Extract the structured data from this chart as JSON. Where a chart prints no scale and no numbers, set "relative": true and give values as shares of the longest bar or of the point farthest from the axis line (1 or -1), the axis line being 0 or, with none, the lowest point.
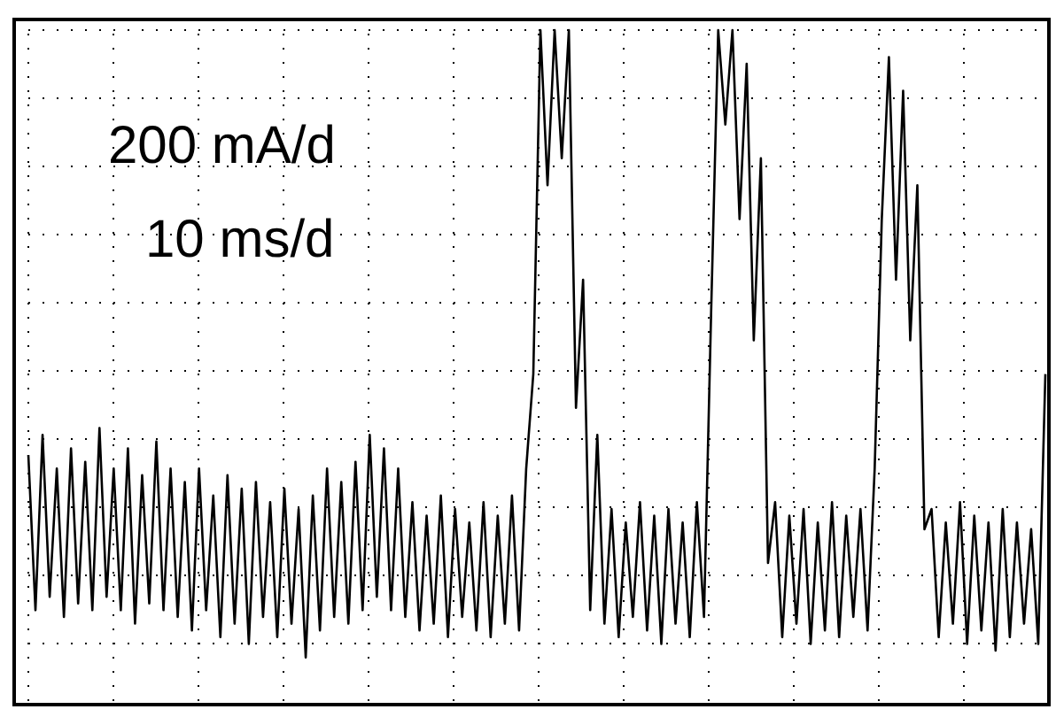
{
  "chart_data": {
    "type": "line",
    "relative": true,
    "grid": true,
    "annotations": [
      "200 mA/d",
      "10 ms/d"
    ],
    "categories": [
      null,
      null,
      null,
      null,
      null,
      null,
      null,
      null,
      null,
      null,
      null,
      null,
      null,
      null,
      null,
      null,
      null,
      null,
      null,
      null,
      null,
      null,
      null,
      null,
      null,
      null,
      null,
      null,
      null,
      null,
      null,
      null,
      null,
      null,
      null,
      null,
      null,
      null,
      null,
      null,
      null,
      null,
      null,
      null,
      null,
      null,
      null,
      null,
      null,
      null,
      null,
      null,
      null,
      null,
      null,
      null,
      null,
      null,
      null,
      null,
      null,
      null,
      null,
      null,
      null,
      null,
      null,
      null,
      null,
      null,
      null,
      null,
      null,
      null,
      null,
      null,
      null,
      null,
      null,
      null,
      null,
      null,
      null,
      null,
      null,
      null,
      null,
      null,
      null,
      null,
      null,
      null,
      null,
      null,
      null,
      null,
      null,
      null,
      null,
      null,
      null,
      null,
      null,
      null,
      null,
      null,
      null,
      null,
      null,
      null,
      null,
      null,
      null,
      null,
      null,
      null,
      null,
      null,
      null,
      null,
      null,
      null,
      null,
      null,
      null,
      null,
      null,
      null,
      null,
      null,
      null,
      null,
      null,
      null,
      null,
      null,
      null,
      null,
      null,
      null,
      null,
      null,
      null,
      null
    ],
    "series": [
      {
        "color": "#000000",
        "values": [
          0.37,
          0.14,
          0.4,
          0.16,
          0.35,
          0.13,
          0.38,
          0.15,
          0.36,
          0.14,
          0.41,
          0.16,
          0.35,
          0.14,
          0.38,
          0.12,
          0.34,
          0.15,
          0.39,
          0.14,
          0.35,
          0.13,
          0.33,
          0.11,
          0.35,
          0.14,
          0.31,
          0.1,
          0.34,
          0.12,
          0.32,
          0.09,
          0.33,
          0.13,
          0.3,
          0.1,
          0.32,
          0.12,
          0.29,
          0.07,
          0.31,
          0.11,
          0.35,
          0.13,
          0.33,
          0.12,
          0.36,
          0.14,
          0.4,
          0.16,
          0.38,
          0.14,
          0.35,
          0.13,
          0.3,
          0.11,
          0.28,
          0.12,
          0.31,
          0.1,
          0.29,
          0.13,
          0.27,
          0.11,
          0.3,
          0.1,
          0.28,
          0.12,
          0.31,
          0.11,
          0.35,
          0.49,
          1,
          0.77,
          1,
          0.81,
          1,
          0.44,
          0.63,
          0.14,
          0.4,
          0.12,
          0.29,
          0.1,
          0.27,
          0.13,
          0.3,
          0.11,
          0.28,
          0.09,
          0.29,
          0.12,
          0.27,
          0.1,
          0.3,
          0.13,
          0.58,
          1,
          0.86,
          1,
          0.72,
          0.95,
          0.54,
          0.81,
          0.21,
          0.3,
          0.1,
          0.28,
          0.12,
          0.29,
          0.09,
          0.27,
          0.11,
          0.3,
          0.1,
          0.28,
          0.13,
          0.29,
          0.11,
          0.35,
          0.72,
          0.96,
          0.63,
          0.91,
          0.54,
          0.77,
          0.26,
          0.29,
          0.1,
          0.27,
          0.12,
          0.3,
          0.09,
          0.28,
          0.11,
          0.27,
          0.08,
          0.29,
          0.1,
          0.27,
          0.12,
          0.26,
          0.09,
          0.49
        ]
      }
    ]
  }
}
